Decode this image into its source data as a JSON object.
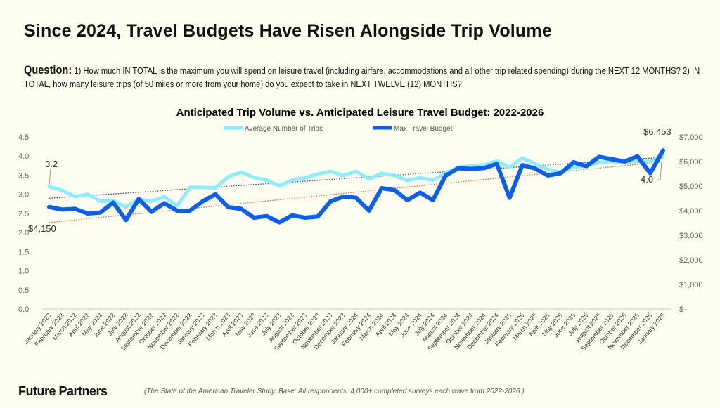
{
  "header": {
    "title": "Since 2024, Travel Budgets Have Risen Alongside Trip Volume",
    "question_label": "Question:",
    "question_text": "1) How much IN TOTAL is the maximum you will spend on leisure travel (including airfare, accommodations and all other trip related spending) during the NEXT 12 MONTHS? 2) IN TOTAL, how many leisure trips (of 50 miles or more from your home) do you expect to take in NEXT TWELVE (12) MONTHS?"
  },
  "footer": {
    "logo": "Future Partners",
    "note": "(The State of the American Traveler Study. Base: All respondents, 4,000+ completed surveys each wave from 2022-2026.)"
  },
  "chart_data": {
    "type": "line",
    "title": "Anticipated Trip Volume vs. Anticipated Leisure Travel Budget: 2022-2026",
    "legend_position": "top-center",
    "categories": [
      "January 2022",
      "February 2022",
      "March 2022",
      "April 2022",
      "May 2022",
      "June 2022",
      "July 2022",
      "August 2022",
      "September 2022",
      "October 2022",
      "November 2022",
      "December 2022",
      "January 2023",
      "February 2023",
      "March 2023",
      "April 2023",
      "May 2023",
      "June 2023",
      "July 2023",
      "August 2023",
      "September 2023",
      "October 2023",
      "November 2023",
      "December 2023",
      "January 2024",
      "February 2024",
      "March 2024",
      "April 2024",
      "May 2024",
      "June 2024",
      "July 2024",
      "August 2024",
      "September 2024",
      "October 2024",
      "November 2024",
      "December 2024",
      "January 2025",
      "February 2025",
      "March 2025",
      "April 2025",
      "May 2025",
      "June 2025",
      "July 2025",
      "August 2025",
      "September 2025",
      "October 2025",
      "November 2025",
      "December 2025",
      "January 2026"
    ],
    "series": [
      {
        "name": "Average Number of Trips",
        "axis": "left",
        "color": "#8ceefc",
        "trend_color": "#3a3a8a",
        "values": [
          3.2,
          3.11,
          2.94,
          3.0,
          2.82,
          2.83,
          2.67,
          2.87,
          2.82,
          2.94,
          2.7,
          3.18,
          3.18,
          3.17,
          3.46,
          3.58,
          3.44,
          3.37,
          3.22,
          3.37,
          3.43,
          3.53,
          3.6,
          3.49,
          3.6,
          3.4,
          3.55,
          3.49,
          3.36,
          3.43,
          3.37,
          3.55,
          3.71,
          3.74,
          3.77,
          3.87,
          3.71,
          3.95,
          3.8,
          3.65,
          3.58,
          3.71,
          3.74,
          3.83,
          3.86,
          3.83,
          3.86,
          3.86,
          4.0
        ]
      },
      {
        "name": "Max Travel Budget",
        "axis": "right",
        "color": "#0a5ff0",
        "trend_color": "#e0703a",
        "values": [
          4150,
          4048,
          4076,
          3886,
          3924,
          4333,
          3619,
          4476,
          3952,
          4305,
          4000,
          4000,
          4381,
          4667,
          4143,
          4076,
          3714,
          3781,
          3524,
          3810,
          3714,
          3762,
          4381,
          4571,
          4524,
          4000,
          4914,
          4838,
          4429,
          4733,
          4429,
          5429,
          5733,
          5695,
          5733,
          5905,
          4524,
          5857,
          5714,
          5429,
          5524,
          5971,
          5810,
          6190,
          6095,
          6000,
          6210,
          5524,
          6453
        ]
      }
    ],
    "left_axis": {
      "min": 0,
      "max": 4.5,
      "ticks": [
        "0.0",
        "0.5",
        "1.0",
        "1.5",
        "2.0",
        "2.5",
        "3.0",
        "3.5",
        "4.0",
        "4.5"
      ]
    },
    "right_axis": {
      "min": 0,
      "max": 7000,
      "ticks": [
        "$-",
        "$1,000",
        "$2,000",
        "$3,000",
        "$4,000",
        "$5,000",
        "$6,000",
        "$7,000"
      ]
    },
    "annotations": {
      "trips_start": "3.2",
      "trips_end": "4.0",
      "budget_start": "$4,150",
      "budget_end": "$6,453"
    }
  }
}
